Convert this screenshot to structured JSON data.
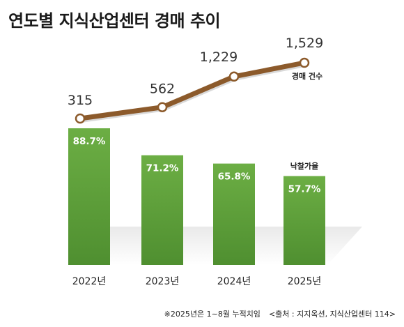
{
  "title": "연도별 지식산업센터 경매 추이",
  "footnote": "※2025년은 1~8월 누적치임",
  "source": "<출처 : 지지옥션, 지식산업센터 114>",
  "chart_data": {
    "type": "bar",
    "categories": [
      "2022년",
      "2023년",
      "2024년",
      "2025년"
    ],
    "series": [
      {
        "name": "낙찰가율",
        "type": "bar",
        "values": [
          88.7,
          71.2,
          65.8,
          57.7
        ],
        "labels": [
          "88.7%",
          "71.2%",
          "65.8%",
          "57.7%"
        ],
        "color": "#5c9e3a"
      },
      {
        "name": "경매 건수",
        "type": "line",
        "values": [
          315,
          562,
          1229,
          1529
        ],
        "labels": [
          "315",
          "562",
          "1,229",
          "1,529"
        ],
        "color": "#8c5a2b"
      }
    ],
    "grid": false
  }
}
